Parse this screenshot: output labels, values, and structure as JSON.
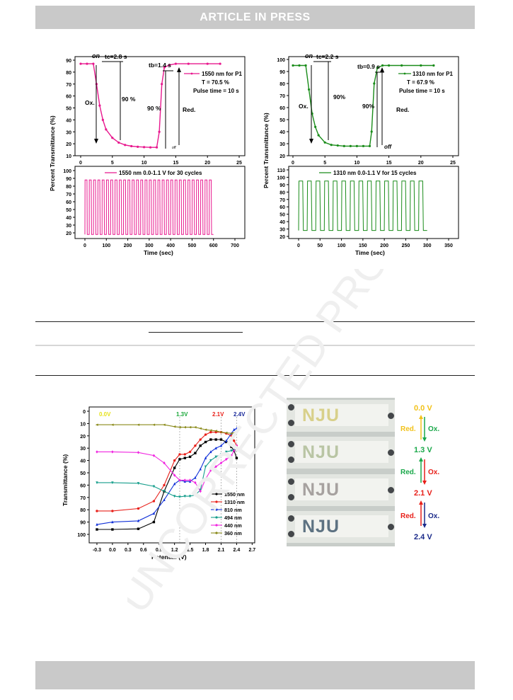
{
  "header": {
    "banner": "ARTICLE IN PRESS"
  },
  "figures": {
    "top_left": {
      "ylabel": "Percent Transmittance (%)",
      "xlabel": "Time (sec)",
      "step_ticks_x": [
        "0",
        "5",
        "10",
        "15",
        "20",
        "25"
      ],
      "step_ticks_y": [
        "10",
        "20",
        "30",
        "40",
        "50",
        "60",
        "70",
        "80",
        "90"
      ],
      "cyc_ticks_x": [
        "0",
        "100",
        "200",
        "300",
        "400",
        "500",
        "600",
        "700"
      ],
      "cyc_ticks_y": [
        "20",
        "30",
        "40",
        "50",
        "60",
        "70",
        "80",
        "90",
        "100"
      ],
      "ann": {
        "on": "on",
        "tc": "tc=2.8 s",
        "tb": "tb=1.4 s",
        "off": "off",
        "ox": "Ox.",
        "red": "Red.",
        "p90a": "90 %",
        "p90b": "90 %",
        "legend": "1550 nm for P1",
        "T": "T = 70.5 %",
        "pulse": "Pulse time = 10 s",
        "cyc_legend": "1550 nm 0.0-1.1 V for 30 cycles"
      }
    },
    "top_right": {
      "ylabel": "Percent Transmittance (%)",
      "xlabel": "Time (sec)",
      "step_ticks_x": [
        "0",
        "5",
        "10",
        "15",
        "20",
        "25"
      ],
      "step_ticks_y": [
        "20",
        "30",
        "40",
        "50",
        "60",
        "70",
        "80",
        "90",
        "100"
      ],
      "cyc_ticks_x": [
        "0",
        "50",
        "100",
        "150",
        "200",
        "250",
        "300",
        "350"
      ],
      "cyc_ticks_y": [
        "20",
        "30",
        "40",
        "50",
        "60",
        "70",
        "80",
        "90",
        "100",
        "110"
      ],
      "ann": {
        "on": "on",
        "tc": "tc=2.2 s",
        "tb": "tb=0.9 s",
        "off": "off",
        "ox": "Ox.",
        "red": "Red.",
        "p90a": "90%",
        "p90b": "90%",
        "legend": "1310 nm for P1",
        "T": "T = 67.9 %",
        "pulse": "Pulse time = 10 s",
        "cyc_legend": "1310 nm 0.0-1.1 V for 15 cycles"
      }
    },
    "bottom_left": {
      "ylabel": "Transmittance (%)",
      "xlabel": "Potential (V)",
      "ticks_x": [
        "-0.3",
        "0.0",
        "0.3",
        "0.6",
        "0.9",
        "1.2",
        "1.5",
        "1.8",
        "2.1",
        "2.4",
        "2.7"
      ],
      "ticks_y": [
        "0",
        "10",
        "20",
        "30",
        "40",
        "50",
        "60",
        "70",
        "80",
        "90",
        "100"
      ],
      "voltage_labels": [
        "0.0V",
        "1.3V",
        "2.1V",
        "2.4V"
      ]
    },
    "bottom_right": {
      "states": [
        "0.0 V",
        "1.3 V",
        "2.1 V",
        "2.4 V"
      ],
      "red_label": "Red.",
      "ox_label": "Ox.",
      "logo_text": "NJU"
    }
  },
  "chart_data": [
    {
      "type": "line",
      "title": "",
      "xlabel": "",
      "ylabel": "Percent Transmittance (%)",
      "xlim": [
        0,
        25
      ],
      "ylim": [
        10,
        95
      ],
      "series": [
        {
          "name": "1550 nm for P1",
          "x": [
            0,
            1,
            2,
            2.5,
            3,
            3.5,
            4,
            5,
            6,
            7,
            8,
            9,
            10,
            11,
            12,
            12.4,
            12.8,
            13.2,
            14,
            15,
            17,
            20,
            22
          ],
          "y": [
            87,
            87,
            87,
            70,
            52,
            40,
            32,
            25,
            21,
            19,
            18,
            17.5,
            17.2,
            17,
            17,
            30,
            70,
            84,
            86,
            87,
            87,
            87,
            87
          ]
        }
      ]
    },
    {
      "type": "line",
      "title": "",
      "xlabel": "Time (sec)",
      "ylabel": "",
      "xlim": [
        0,
        700
      ],
      "ylim": [
        15,
        105
      ],
      "series": [
        {
          "name": "1550 nm 0.0-1.1 V for 30 cycles",
          "cycles": 30,
          "period": 20,
          "high": 88,
          "low": 18
        }
      ]
    },
    {
      "type": "line",
      "title": "",
      "xlabel": "",
      "ylabel": "Percent Transmittance (%)",
      "xlim": [
        0,
        25
      ],
      "ylim": [
        20,
        100
      ],
      "series": [
        {
          "name": "1310 nm for P1",
          "x": [
            0,
            1,
            2,
            2.5,
            3,
            3.5,
            4,
            5,
            6,
            7,
            8,
            9,
            10,
            11,
            12,
            12.3,
            12.7,
            13.2,
            14,
            15,
            17,
            20,
            22
          ],
          "y": [
            95,
            95,
            95,
            75,
            55,
            44,
            37,
            31,
            29,
            28.5,
            28,
            28,
            28,
            28,
            28,
            40,
            80,
            93,
            95,
            95,
            95,
            95,
            95
          ]
        }
      ]
    },
    {
      "type": "line",
      "title": "",
      "xlabel": "Time (sec)",
      "ylabel": "",
      "xlim": [
        0,
        350
      ],
      "ylim": [
        20,
        112
      ],
      "series": [
        {
          "name": "1310 nm 0.0-1.1 V for 15 cycles",
          "cycles": 15,
          "period": 20,
          "high": 95,
          "low": 28
        }
      ]
    },
    {
      "type": "line",
      "title": "",
      "xlabel": "Potential (V)",
      "ylabel": "Transmittance (%)",
      "xlim": [
        -0.45,
        2.75
      ],
      "ylim": [
        0,
        100
      ],
      "y_inverted": true,
      "series": [
        {
          "name": "1550 nm",
          "color": "#000000",
          "marker": "square",
          "x": [
            -0.3,
            0,
            0.5,
            0.8,
            1.0,
            1.2,
            1.3,
            1.4,
            1.5,
            1.6,
            1.7,
            1.8,
            1.9,
            2.0,
            2.1,
            2.2,
            2.3,
            2.35,
            2.4
          ],
          "y": [
            96,
            96,
            95.5,
            90,
            65,
            46,
            39,
            38,
            37,
            34,
            28,
            25,
            23,
            23,
            23,
            25,
            29,
            32,
            38
          ]
        },
        {
          "name": "1310 nm",
          "color": "#e8201a",
          "marker": "circle",
          "x": [
            -0.3,
            0,
            0.5,
            0.8,
            1.0,
            1.2,
            1.3,
            1.4,
            1.5,
            1.6,
            1.7,
            1.8,
            1.9,
            2.0,
            2.1,
            2.2,
            2.3,
            2.35,
            2.4
          ],
          "y": [
            81,
            81,
            79,
            73,
            60,
            40,
            35,
            35,
            33,
            28,
            23,
            19,
            17,
            17,
            17,
            18,
            20,
            24,
            28
          ]
        },
        {
          "name": "810 nm",
          "color": "#1030d8",
          "marker": "triangle-up",
          "x": [
            -0.3,
            0,
            0.5,
            0.8,
            1.0,
            1.2,
            1.3,
            1.4,
            1.5,
            1.6,
            1.7,
            1.8,
            1.9,
            2.0,
            2.1,
            2.2,
            2.3,
            2.35,
            2.4
          ],
          "y": [
            92,
            90,
            89,
            83,
            72,
            59,
            56,
            57,
            57,
            54,
            47,
            38,
            33,
            30,
            28,
            24,
            18,
            15,
            14
          ]
        },
        {
          "name": "494 nm",
          "color": "#169e8c",
          "marker": "triangle-down",
          "x": [
            -0.3,
            0,
            0.5,
            0.8,
            1.0,
            1.2,
            1.3,
            1.4,
            1.5,
            1.6,
            1.7,
            1.8,
            1.9,
            2.0,
            2.1,
            2.2,
            2.3,
            2.35,
            2.4
          ],
          "y": [
            58,
            58,
            58.5,
            61,
            65,
            69,
            69.5,
            69,
            69,
            68,
            64,
            45,
            40,
            37,
            35,
            33,
            32,
            31.5,
            31
          ]
        },
        {
          "name": "440 nm",
          "color": "#f025e0",
          "marker": "diamond",
          "x": [
            -0.3,
            0,
            0.5,
            0.8,
            1.0,
            1.2,
            1.3,
            1.4,
            1.5,
            1.6,
            1.7,
            1.8,
            1.9,
            2.0,
            2.1,
            2.2,
            2.3,
            2.35,
            2.4
          ],
          "y": [
            33,
            33,
            33.5,
            36,
            42,
            52,
            56,
            56,
            56,
            58,
            65,
            55,
            48,
            45,
            42,
            39,
            36,
            32,
            28
          ]
        },
        {
          "name": "360 nm",
          "color": "#8a8a1a",
          "marker": "triangle-left",
          "x": [
            -0.3,
            0,
            0.5,
            0.8,
            1.0,
            1.2,
            1.3,
            1.4,
            1.5,
            1.6,
            1.7,
            1.8,
            1.9,
            2.0,
            2.1,
            2.2,
            2.3,
            2.35,
            2.4
          ],
          "y": [
            11,
            11,
            11,
            11,
            11,
            12.5,
            13,
            13,
            13,
            13,
            14,
            15,
            15.5,
            16,
            17,
            17.5,
            18,
            17.5,
            16
          ]
        }
      ]
    }
  ]
}
